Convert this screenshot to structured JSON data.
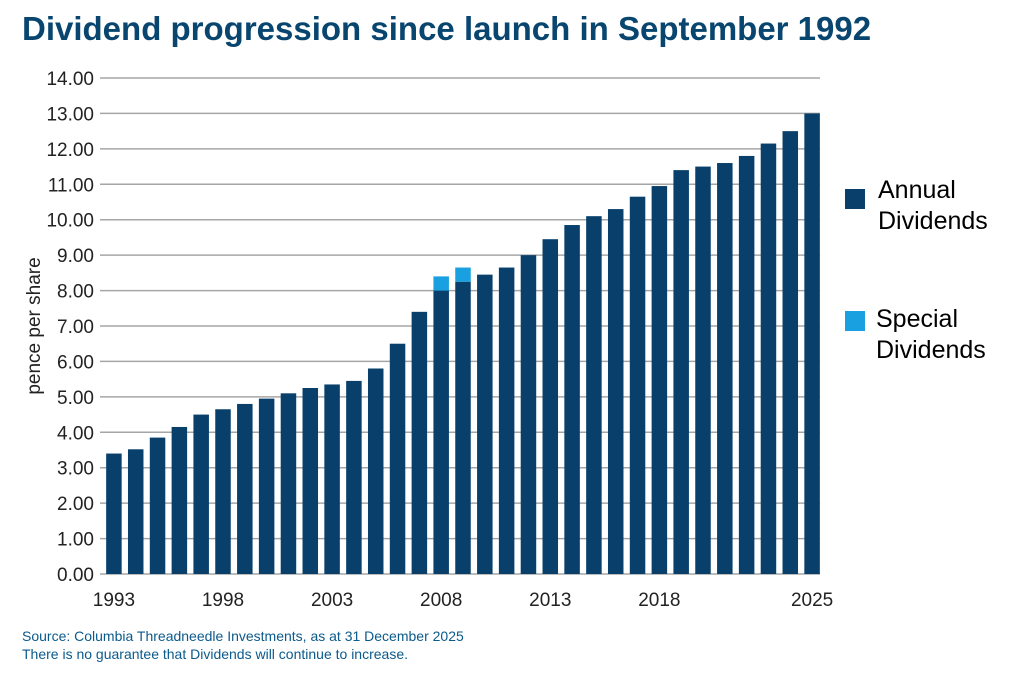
{
  "title": "Dividend progression since launch in September 1992",
  "source": {
    "line1": "Source: Columbia Threadneedle Investments, as at 31 December 2025",
    "line2": "There is no guarantee that Dividends will continue to increase."
  },
  "colors": {
    "annual": "#08406B",
    "special": "#18A0E0",
    "grid": "#A6A6A6",
    "title": "#08456F",
    "source": "#0B5A8C"
  },
  "legend": {
    "annual_line1": "Annual",
    "annual_line2": "Dividends",
    "special_line1": "Special",
    "special_line2": "Dividends"
  },
  "chart_data": {
    "type": "bar",
    "stacked": true,
    "title": "",
    "xlabel": "",
    "ylabel": "pence per share",
    "ylim": [
      0,
      14
    ],
    "ytick_step": 1,
    "ytick_labels": [
      "0.00",
      "1.00",
      "2.00",
      "3.00",
      "4.00",
      "5.00",
      "6.00",
      "7.00",
      "8.00",
      "9.00",
      "10.00",
      "11.00",
      "12.00",
      "13.00",
      "14.00"
    ],
    "grid": true,
    "legend_position": "right",
    "categories": [
      "1993",
      "1994",
      "1995",
      "1996",
      "1997",
      "1998",
      "1999",
      "2000",
      "2001",
      "2002",
      "2003",
      "2004",
      "2005",
      "2006",
      "2007",
      "2008",
      "2009",
      "2010",
      "2011",
      "2012",
      "2013",
      "2014",
      "2015",
      "2016",
      "2017",
      "2018",
      "2019",
      "2020",
      "2021",
      "2022",
      "2023",
      "2024",
      "2025"
    ],
    "xtick_labels_shown": [
      "1993",
      "1998",
      "2003",
      "2008",
      "2013",
      "2018",
      "2025"
    ],
    "series": [
      {
        "name": "Annual Dividends",
        "values": [
          3.4,
          3.52,
          3.85,
          4.15,
          4.5,
          4.65,
          4.8,
          4.95,
          5.1,
          5.25,
          5.35,
          5.45,
          5.8,
          6.5,
          7.4,
          8.0,
          8.25,
          8.45,
          8.65,
          9.0,
          9.45,
          9.85,
          10.1,
          10.3,
          10.65,
          10.95,
          11.4,
          11.5,
          11.6,
          11.8,
          12.15,
          12.5,
          13.0
        ]
      },
      {
        "name": "Special Dividends",
        "values": [
          0,
          0,
          0,
          0,
          0,
          0,
          0,
          0,
          0,
          0,
          0,
          0,
          0,
          0,
          0,
          0.4,
          0.4,
          0,
          0,
          0,
          0,
          0,
          0,
          0,
          0,
          0,
          0,
          0,
          0,
          0,
          0,
          0,
          0
        ]
      }
    ]
  }
}
